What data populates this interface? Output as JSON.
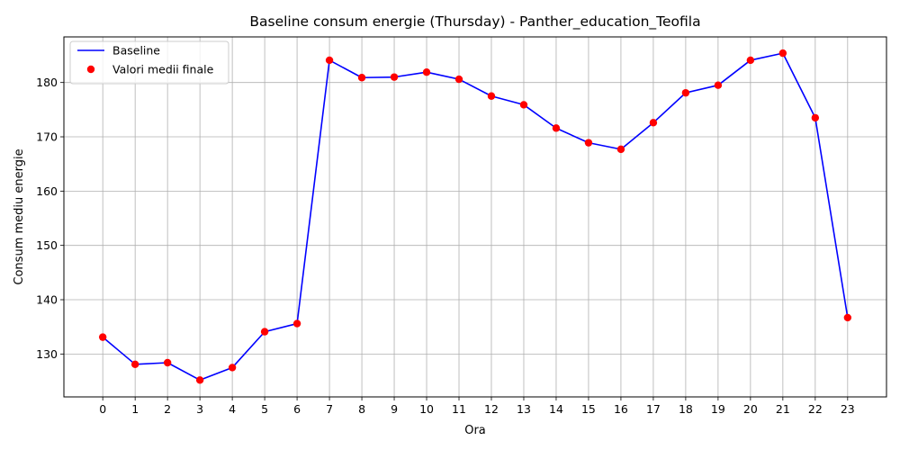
{
  "chart_data": {
    "type": "line",
    "title": "Baseline consum energie (Thursday) - Panther_education_Teofila",
    "xlabel": "Ora",
    "ylabel": "Consum mediu energie",
    "x": [
      0,
      1,
      2,
      3,
      4,
      5,
      6,
      7,
      8,
      9,
      10,
      11,
      12,
      13,
      14,
      15,
      16,
      17,
      18,
      19,
      20,
      21,
      22,
      23
    ],
    "x_tick_labels": [
      "0",
      "1",
      "2",
      "3",
      "4",
      "5",
      "6",
      "7",
      "8",
      "9",
      "10",
      "11",
      "12",
      "13",
      "14",
      "15",
      "16",
      "17",
      "18",
      "19",
      "20",
      "21",
      "22",
      "23"
    ],
    "xlim": [
      -1.2,
      24.2
    ],
    "ylim": [
      122.1,
      188.4
    ],
    "y_ticks": [
      130,
      140,
      150,
      160,
      170,
      180
    ],
    "y_tick_labels": [
      "130",
      "140",
      "150",
      "160",
      "170",
      "180"
    ],
    "grid": true,
    "legend_position": "top-left",
    "series": [
      {
        "name": "Baseline",
        "kind": "line",
        "color": "#0000ff",
        "values": [
          133.1,
          128.1,
          128.4,
          125.2,
          127.5,
          134.1,
          135.6,
          184.1,
          180.9,
          181.0,
          181.9,
          180.6,
          177.5,
          175.9,
          171.6,
          168.9,
          167.7,
          172.6,
          178.1,
          179.5,
          184.1,
          185.4,
          173.5,
          136.7
        ]
      },
      {
        "name": "Valori medii finale",
        "kind": "scatter",
        "color": "#ff0000",
        "values": [
          133.1,
          128.1,
          128.4,
          125.2,
          127.5,
          134.1,
          135.6,
          184.1,
          180.9,
          181.0,
          181.9,
          180.6,
          177.5,
          175.9,
          171.6,
          168.9,
          167.7,
          172.6,
          178.1,
          179.5,
          184.1,
          185.4,
          173.5,
          136.7
        ]
      }
    ]
  }
}
